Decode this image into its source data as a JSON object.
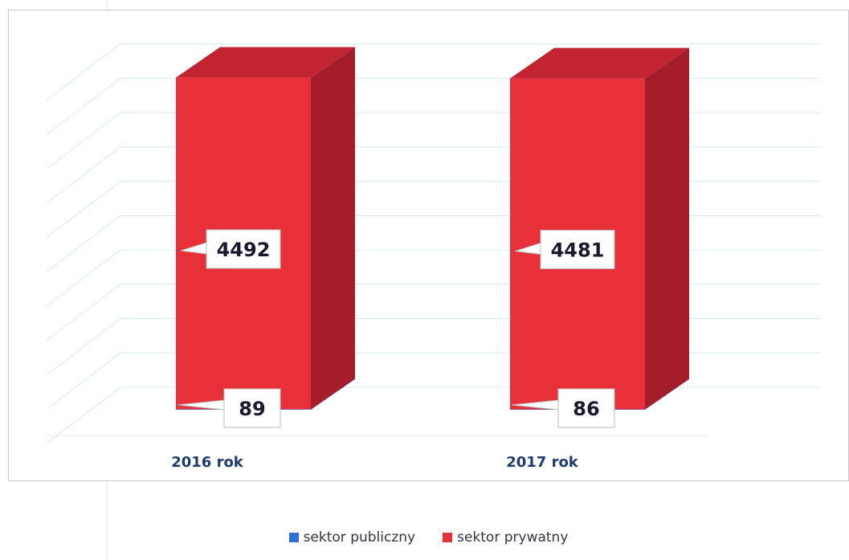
{
  "chart_data": {
    "type": "bar",
    "stacked": true,
    "style": "3d-column",
    "categories": [
      "2016 rok",
      "2017 rok"
    ],
    "series": [
      {
        "name": "sektor publiczny",
        "values": [
          89,
          86
        ],
        "color": "#2f6fd6"
      },
      {
        "name": "sektor prywatny",
        "values": [
          4492,
          4481
        ],
        "color": "#e8303a"
      }
    ],
    "title": "",
    "xlabel": "",
    "ylabel": "",
    "ylim": [
      0,
      5000
    ],
    "grid": true,
    "legend_position": "bottom"
  },
  "colors": {
    "private_front": "#e8303a",
    "private_side": "#a51c2a",
    "private_top": "#c22431",
    "public_front": "#2f6fd6",
    "public_side": "#1f4fa8",
    "public_top": "#3a7fe0",
    "gridline": "#d4ecf0",
    "category_label": "#1f3a6e"
  }
}
